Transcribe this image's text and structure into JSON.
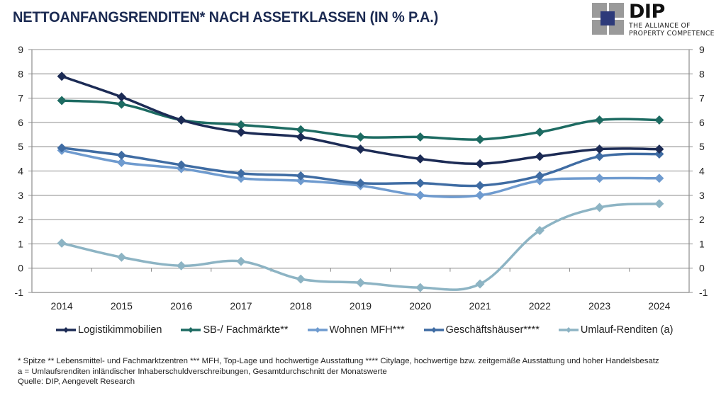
{
  "header": {
    "title": "NETTOANFANGSRENDITEN* NACH ASSETKLASSEN (IN % P.A.)"
  },
  "logo": {
    "name": "DIP",
    "tagline_line1": "THE ALLIANCE OF",
    "tagline_line2": "PROPERTY COMPETENCE",
    "colors": {
      "squares": "#9a9a9a",
      "center": "#2d3a7a"
    }
  },
  "chart_data": {
    "type": "line",
    "title": "NETTOANFANGSRENDITEN* NACH ASSETKLASSEN (IN % P.A.)",
    "xlabel": "",
    "ylabel": "",
    "x": [
      "2014",
      "2015",
      "2016",
      "2017",
      "2018",
      "2019",
      "2020",
      "2021",
      "2022",
      "2023",
      "2024"
    ],
    "ylim": [
      -1,
      9
    ],
    "yticks": [
      "9",
      "8",
      "7",
      "6",
      "5",
      "4",
      "3",
      "2",
      "1",
      "0",
      "-1"
    ],
    "ytick_values": [
      9,
      8,
      7,
      6,
      5,
      4,
      3,
      2,
      1,
      0,
      -1
    ],
    "secondary_y_axis": true,
    "grid": "horizontal",
    "legend_position": "bottom",
    "smooth": true,
    "marker": "diamond",
    "series": [
      {
        "name": "Logistikimmobilien",
        "color": "#1c2b55",
        "values": [
          7.9,
          7.05,
          6.1,
          5.6,
          5.4,
          4.9,
          4.5,
          4.3,
          4.6,
          4.9,
          4.9
        ]
      },
      {
        "name": "SB-/ Fachmärkte**",
        "color": "#1d6b62",
        "values": [
          6.9,
          6.75,
          6.1,
          5.9,
          5.7,
          5.4,
          5.4,
          5.3,
          5.6,
          6.1,
          6.1
        ]
      },
      {
        "name": "Wohnen MFH***",
        "color": "#6f9bcf",
        "values": [
          4.85,
          4.35,
          4.1,
          3.7,
          3.6,
          3.4,
          3.0,
          3.0,
          3.6,
          3.7,
          3.7
        ]
      },
      {
        "name": "Geschäftshäuser****",
        "color": "#3f6ca3",
        "values": [
          4.95,
          4.65,
          4.25,
          3.9,
          3.8,
          3.5,
          3.5,
          3.4,
          3.8,
          4.6,
          4.7
        ]
      },
      {
        "name": "Umlauf-Renditen (a)",
        "color": "#8db4c4",
        "values": [
          1.03,
          0.45,
          0.1,
          0.28,
          -0.45,
          -0.6,
          -0.8,
          -0.65,
          1.55,
          2.5,
          2.65
        ]
      }
    ]
  },
  "footnotes": {
    "line1": "* Spitze ** Lebensmittel- und Fachmarktzentren *** MFH, Top-Lage und hochwertige Ausstattung **** Citylage, hochwertige bzw. zeitgemäße Ausstattung und hoher Handelsbesatz",
    "line2": "a = Umlaufsrenditen inländischer Inhaberschuldverschreibungen, Gesamtdurchschnitt der Monatswerte",
    "line3": "Quelle: DIP, Aengevelt Research"
  }
}
